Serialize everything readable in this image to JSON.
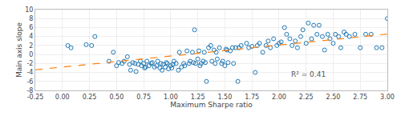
{
  "chart_data": {
    "type": "scatter",
    "xlabel": "Maximum Sharpe ratio",
    "ylabel": "Main axis slope",
    "xlim": [
      -0.25,
      3.0
    ],
    "ylim": [
      -8,
      10
    ],
    "xticks": [
      -0.25,
      {
        "value": 0.0,
        "label": "0.00"
      },
      0.25,
      {
        "value": 0.5,
        "label": "0.50"
      },
      0.75,
      {
        "value": 1.0,
        "label": "1.00"
      },
      1.25,
      {
        "value": 1.5,
        "label": "1.50"
      },
      1.75,
      {
        "value": 2.0,
        "label": "2.00"
      },
      2.25,
      {
        "value": 2.5,
        "label": "2.50"
      },
      2.75,
      {
        "value": 3.0,
        "label": "3.00"
      }
    ],
    "yticks": [
      -8,
      -6,
      -4,
      -2,
      0,
      2,
      4,
      6,
      8,
      10
    ],
    "grid": true,
    "series": [
      {
        "type": "scatter",
        "marker": "circle-open",
        "x": [
          0.05,
          0.08,
          0.22,
          0.27,
          0.3,
          0.43,
          0.47,
          0.5,
          0.52,
          0.55,
          0.57,
          0.6,
          0.62,
          0.63,
          0.65,
          0.67,
          0.68,
          0.7,
          0.72,
          0.73,
          0.75,
          0.76,
          0.77,
          0.78,
          0.8,
          0.82,
          0.83,
          0.85,
          0.87,
          0.88,
          0.9,
          0.91,
          0.92,
          0.93,
          0.95,
          0.96,
          0.97,
          0.98,
          1.0,
          1.01,
          1.02,
          1.03,
          1.05,
          1.07,
          1.08,
          1.1,
          1.12,
          1.13,
          1.15,
          1.17,
          1.18,
          1.2,
          1.21,
          1.22,
          1.23,
          1.25,
          1.26,
          1.27,
          1.28,
          1.3,
          1.31,
          1.32,
          1.33,
          1.35,
          1.37,
          1.38,
          1.4,
          1.41,
          1.42,
          1.43,
          1.45,
          1.47,
          1.48,
          1.5,
          1.51,
          1.52,
          1.53,
          1.55,
          1.57,
          1.58,
          1.6,
          1.62,
          1.63,
          1.65,
          1.7,
          1.72,
          1.75,
          1.78,
          1.8,
          1.82,
          1.85,
          1.88,
          1.9,
          1.92,
          1.95,
          1.98,
          2.0,
          2.02,
          2.05,
          2.07,
          2.1,
          2.12,
          2.15,
          2.17,
          2.2,
          2.22,
          2.25,
          2.27,
          2.3,
          2.32,
          2.35,
          2.37,
          2.4,
          2.42,
          2.45,
          2.47,
          2.5,
          2.52,
          2.55,
          2.57,
          2.6,
          2.62,
          2.65,
          2.7,
          2.75,
          2.8,
          2.85,
          2.9,
          2.95,
          3.0
        ],
        "values": [
          2.0,
          1.5,
          2.2,
          2.0,
          4.0,
          -1.5,
          0.5,
          -2.5,
          -1.8,
          -2.0,
          -1.5,
          -0.5,
          -2.2,
          -3.5,
          -1.8,
          -2.0,
          -3.8,
          -2.2,
          -1.5,
          -2.5,
          -2.0,
          -3.0,
          -2.8,
          -1.5,
          -2.5,
          -2.0,
          -1.8,
          -2.8,
          -2.5,
          -1.5,
          -3.0,
          -2.0,
          -3.5,
          -2.2,
          -2.8,
          -1.8,
          -2.0,
          -3.2,
          -2.5,
          -3.0,
          -2.2,
          -1.5,
          -2.0,
          -3.5,
          0.5,
          -2.8,
          -2.0,
          -2.5,
          0.8,
          -2.0,
          -1.5,
          0.5,
          -1.8,
          5.5,
          -2.0,
          -1.0,
          0.8,
          -2.5,
          -2.0,
          -1.5,
          0.5,
          -1.8,
          -6.0,
          1.5,
          2.0,
          -1.5,
          1.0,
          -2.0,
          0.5,
          -1.0,
          1.5,
          -2.0,
          -1.5,
          -2.5,
          1.2,
          1.0,
          -1.8,
          0.8,
          1.5,
          -2.0,
          1.5,
          -6.0,
          1.5,
          2.0,
          2.5,
          1.5,
          1.8,
          -4.0,
          2.0,
          2.5,
          0.5,
          2.0,
          3.0,
          1.5,
          3.5,
          2.0,
          2.5,
          2.8,
          6.0,
          4.5,
          3.5,
          2.0,
          3.0,
          1.5,
          4.0,
          5.5,
          2.5,
          7.0,
          3.5,
          6.5,
          4.5,
          6.5,
          4.0,
          1.0,
          4.5,
          3.5,
          2.5,
          4.5,
          4.0,
          1.5,
          5.0,
          4.5,
          4.0,
          4.5,
          1.5,
          4.5,
          4.5,
          1.5,
          1.5,
          8.0
        ]
      },
      {
        "type": "line",
        "line_style": "dashed",
        "x": [
          -0.25,
          3.0
        ],
        "values": [
          -3.4125,
          4.55
        ]
      }
    ],
    "annotations": [
      {
        "text": "R² = 0.41",
        "x": 2.1,
        "y": -4.5
      }
    ]
  }
}
